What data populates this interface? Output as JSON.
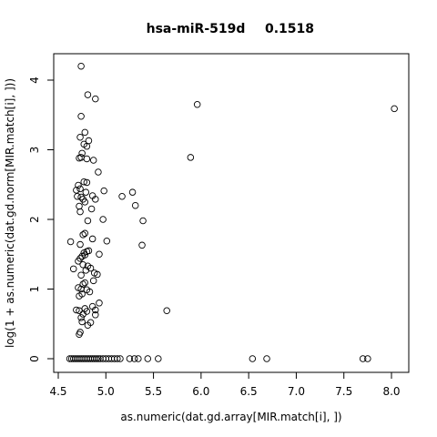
{
  "chart_data": {
    "type": "scatter",
    "title": "hsa-miR-519d",
    "title_value": "0.1518",
    "xlabel": "as.numeric(dat.gd.array[MIR.match[i], ])",
    "ylabel": "log(1 + as.numeric(dat.gd.norm[MIR.match[i], ]))",
    "xlim": [
      4.5,
      8.1
    ],
    "ylim": [
      0,
      4.25
    ],
    "x_ticks": [
      4.5,
      5.0,
      5.5,
      6.0,
      6.5,
      7.0,
      7.5,
      8.0
    ],
    "x_tick_labels": [
      "4.5",
      "5.0",
      "5.5",
      "6.0",
      "6.5",
      "7.0",
      "7.5",
      "8.0"
    ],
    "y_ticks": [
      0,
      1,
      2,
      3,
      4
    ],
    "y_tick_labels": [
      "0",
      "1",
      "2",
      "3",
      "4"
    ],
    "grid": false,
    "legend": "none",
    "marker": "open-circle",
    "points": [
      {
        "x": 4.74,
        "y": 4.2
      },
      {
        "x": 4.81,
        "y": 3.79
      },
      {
        "x": 4.89,
        "y": 3.73
      },
      {
        "x": 5.96,
        "y": 3.65
      },
      {
        "x": 8.03,
        "y": 3.59
      },
      {
        "x": 4.74,
        "y": 3.48
      },
      {
        "x": 4.78,
        "y": 3.25
      },
      {
        "x": 4.73,
        "y": 3.18
      },
      {
        "x": 4.82,
        "y": 3.13
      },
      {
        "x": 4.77,
        "y": 3.08
      },
      {
        "x": 4.8,
        "y": 3.05
      },
      {
        "x": 4.75,
        "y": 2.95
      },
      {
        "x": 4.72,
        "y": 2.88
      },
      {
        "x": 4.74,
        "y": 2.89
      },
      {
        "x": 4.8,
        "y": 2.87
      },
      {
        "x": 4.87,
        "y": 2.85
      },
      {
        "x": 5.89,
        "y": 2.89
      },
      {
        "x": 4.92,
        "y": 2.68
      },
      {
        "x": 4.77,
        "y": 2.54
      },
      {
        "x": 4.8,
        "y": 2.53
      },
      {
        "x": 4.71,
        "y": 2.49
      },
      {
        "x": 4.73,
        "y": 2.44
      },
      {
        "x": 4.69,
        "y": 2.42
      },
      {
        "x": 4.79,
        "y": 2.39
      },
      {
        "x": 4.98,
        "y": 2.41
      },
      {
        "x": 5.28,
        "y": 2.39
      },
      {
        "x": 4.7,
        "y": 2.33
      },
      {
        "x": 4.74,
        "y": 2.32
      },
      {
        "x": 4.86,
        "y": 2.34
      },
      {
        "x": 4.76,
        "y": 2.29
      },
      {
        "x": 4.89,
        "y": 2.29
      },
      {
        "x": 5.17,
        "y": 2.33
      },
      {
        "x": 4.78,
        "y": 2.25
      },
      {
        "x": 4.72,
        "y": 2.19
      },
      {
        "x": 5.31,
        "y": 2.2
      },
      {
        "x": 4.85,
        "y": 2.15
      },
      {
        "x": 4.73,
        "y": 2.11
      },
      {
        "x": 4.81,
        "y": 1.98
      },
      {
        "x": 4.97,
        "y": 2.0
      },
      {
        "x": 5.39,
        "y": 1.98
      },
      {
        "x": 4.76,
        "y": 1.78
      },
      {
        "x": 4.78,
        "y": 1.8
      },
      {
        "x": 4.63,
        "y": 1.68
      },
      {
        "x": 4.86,
        "y": 1.72
      },
      {
        "x": 5.01,
        "y": 1.69
      },
      {
        "x": 5.38,
        "y": 1.63
      },
      {
        "x": 4.73,
        "y": 1.64
      },
      {
        "x": 4.8,
        "y": 1.54
      },
      {
        "x": 4.82,
        "y": 1.55
      },
      {
        "x": 4.77,
        "y": 1.52
      },
      {
        "x": 4.78,
        "y": 1.49
      },
      {
        "x": 4.75,
        "y": 1.47
      },
      {
        "x": 4.73,
        "y": 1.44
      },
      {
        "x": 4.93,
        "y": 1.5
      },
      {
        "x": 4.71,
        "y": 1.4
      },
      {
        "x": 4.76,
        "y": 1.35
      },
      {
        "x": 4.81,
        "y": 1.33
      },
      {
        "x": 4.84,
        "y": 1.3
      },
      {
        "x": 4.66,
        "y": 1.29
      },
      {
        "x": 4.79,
        "y": 1.27
      },
      {
        "x": 4.88,
        "y": 1.23
      },
      {
        "x": 4.91,
        "y": 1.21
      },
      {
        "x": 4.74,
        "y": 1.2
      },
      {
        "x": 4.87,
        "y": 1.12
      },
      {
        "x": 4.78,
        "y": 1.09
      },
      {
        "x": 4.76,
        "y": 1.07
      },
      {
        "x": 4.71,
        "y": 1.02
      },
      {
        "x": 4.74,
        "y": 1.0
      },
      {
        "x": 4.8,
        "y": 0.99
      },
      {
        "x": 4.83,
        "y": 0.96
      },
      {
        "x": 4.75,
        "y": 0.93
      },
      {
        "x": 4.72,
        "y": 0.9
      },
      {
        "x": 4.93,
        "y": 0.8
      },
      {
        "x": 4.86,
        "y": 0.75
      },
      {
        "x": 4.78,
        "y": 0.72
      },
      {
        "x": 4.69,
        "y": 0.7
      },
      {
        "x": 4.72,
        "y": 0.69
      },
      {
        "x": 4.8,
        "y": 0.68
      },
      {
        "x": 4.89,
        "y": 0.7
      },
      {
        "x": 5.64,
        "y": 0.69
      },
      {
        "x": 4.76,
        "y": 0.64
      },
      {
        "x": 4.89,
        "y": 0.63
      },
      {
        "x": 4.74,
        "y": 0.59
      },
      {
        "x": 4.75,
        "y": 0.53
      },
      {
        "x": 4.84,
        "y": 0.52
      },
      {
        "x": 4.81,
        "y": 0.48
      },
      {
        "x": 4.73,
        "y": 0.38
      },
      {
        "x": 4.72,
        "y": 0.35
      },
      {
        "x": 4.62,
        "y": 0
      },
      {
        "x": 4.64,
        "y": 0
      },
      {
        "x": 4.66,
        "y": 0
      },
      {
        "x": 4.68,
        "y": 0
      },
      {
        "x": 4.7,
        "y": 0
      },
      {
        "x": 4.72,
        "y": 0
      },
      {
        "x": 4.74,
        "y": 0
      },
      {
        "x": 4.76,
        "y": 0
      },
      {
        "x": 4.78,
        "y": 0
      },
      {
        "x": 4.8,
        "y": 0
      },
      {
        "x": 4.82,
        "y": 0
      },
      {
        "x": 4.84,
        "y": 0
      },
      {
        "x": 4.86,
        "y": 0
      },
      {
        "x": 4.88,
        "y": 0
      },
      {
        "x": 4.9,
        "y": 0
      },
      {
        "x": 4.92,
        "y": 0
      },
      {
        "x": 4.94,
        "y": 0
      },
      {
        "x": 4.97,
        "y": 0
      },
      {
        "x": 5.0,
        "y": 0
      },
      {
        "x": 5.03,
        "y": 0
      },
      {
        "x": 5.06,
        "y": 0
      },
      {
        "x": 5.09,
        "y": 0
      },
      {
        "x": 5.12,
        "y": 0
      },
      {
        "x": 5.15,
        "y": 0
      },
      {
        "x": 5.25,
        "y": 0
      },
      {
        "x": 5.3,
        "y": 0
      },
      {
        "x": 5.34,
        "y": 0
      },
      {
        "x": 5.44,
        "y": 0
      },
      {
        "x": 5.55,
        "y": 0
      },
      {
        "x": 6.54,
        "y": 0
      },
      {
        "x": 6.69,
        "y": 0
      },
      {
        "x": 7.7,
        "y": 0
      },
      {
        "x": 7.75,
        "y": 0
      }
    ]
  }
}
